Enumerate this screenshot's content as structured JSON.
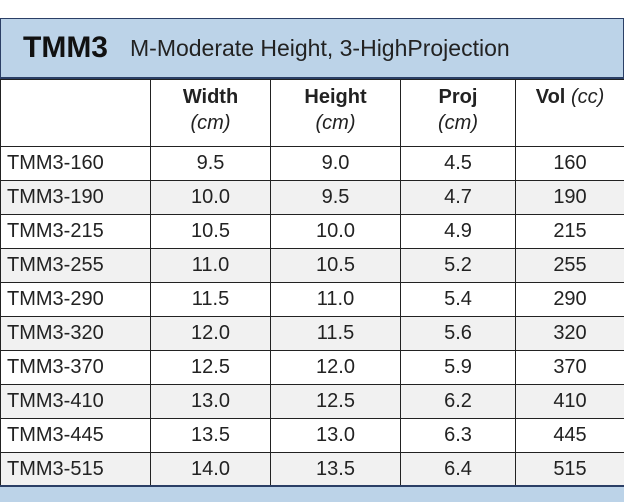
{
  "header": {
    "title": "TMM3",
    "subtitle": "M-Moderate Height, 3-HighProjection"
  },
  "table": {
    "columns": [
      {
        "name": "Width",
        "unit": "(cm)"
      },
      {
        "name": "Height",
        "unit": "(cm)"
      },
      {
        "name": "Proj",
        "unit": "(cm)"
      },
      {
        "name": "Vol",
        "unit": "(cc)"
      }
    ],
    "rows": [
      [
        "TMM3-160",
        "9.5",
        "9.0",
        "4.5",
        "160"
      ],
      [
        "TMM3-190",
        "10.0",
        "9.5",
        "4.7",
        "190"
      ],
      [
        "TMM3-215",
        "10.5",
        "10.0",
        "4.9",
        "215"
      ],
      [
        "TMM3-255",
        "11.0",
        "10.5",
        "5.2",
        "255"
      ],
      [
        "TMM3-290",
        "11.5",
        "11.0",
        "5.4",
        "290"
      ],
      [
        "TMM3-320",
        "12.0",
        "11.5",
        "5.6",
        "320"
      ],
      [
        "TMM3-370",
        "12.5",
        "12.0",
        "5.9",
        "370"
      ],
      [
        "TMM3-410",
        "13.0",
        "12.5",
        "6.2",
        "410"
      ],
      [
        "TMM3-445",
        "13.5",
        "13.0",
        "6.3",
        "445"
      ],
      [
        "TMM3-515",
        "14.0",
        "13.5",
        "6.4",
        "515"
      ]
    ]
  }
}
